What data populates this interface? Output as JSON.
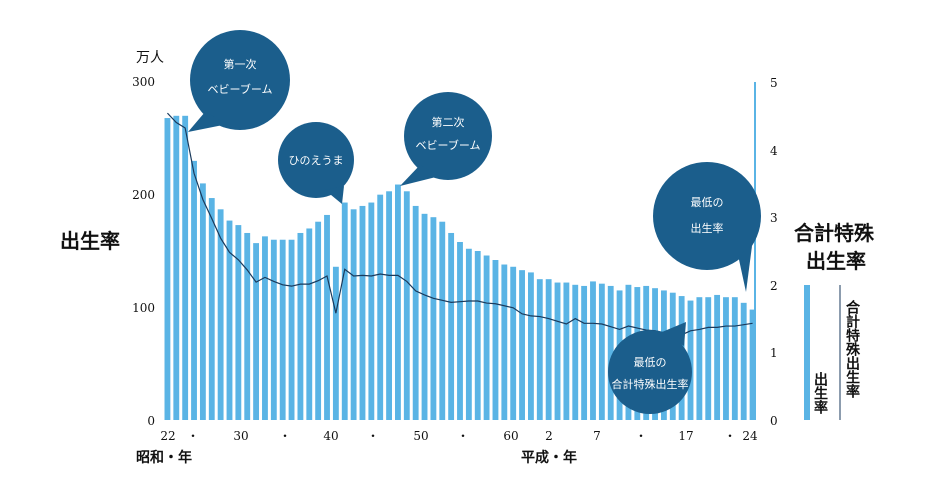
{
  "chart_data": {
    "type": "bar",
    "title": "",
    "left_axis": {
      "label": "出生率",
      "unit": "万人",
      "ylim": [
        0,
        300
      ],
      "ticks": [
        "0",
        "100",
        "200",
        "300"
      ]
    },
    "right_axis": {
      "label_line1": "合計特殊",
      "label_line2": "出生率",
      "ylim": [
        0,
        5
      ],
      "ticks": [
        "0",
        "1",
        "2",
        "3",
        "4",
        "5"
      ]
    },
    "x_axis": {
      "tick_labels": [
        "22",
        "・",
        "30",
        "・",
        "40",
        "・",
        "50",
        "・",
        "60",
        "2",
        "7",
        "・",
        "17",
        "・",
        "24"
      ],
      "era_showa": "昭和・年",
      "era_heisei": "平成・年"
    },
    "series": [
      {
        "name": "出生率",
        "kind": "bar",
        "color": "#5ab4e5",
        "values": [
          268,
          270,
          270,
          230,
          210,
          197,
          187,
          177,
          173,
          166,
          157,
          163,
          160,
          160,
          160,
          166,
          170,
          176,
          182,
          136,
          193,
          187,
          190,
          193,
          200,
          203,
          209,
          203,
          190,
          183,
          180,
          176,
          166,
          158,
          152,
          150,
          146,
          142,
          138,
          136,
          133,
          131,
          125,
          125,
          122,
          122,
          120,
          119,
          123,
          121,
          119,
          115,
          120,
          118,
          119,
          117,
          115,
          113,
          110,
          106,
          109,
          109,
          111,
          109,
          109,
          104,
          98
        ]
      },
      {
        "name": "合計特殊出生率",
        "kind": "line",
        "color": "#1a3a5c",
        "values": [
          4.54,
          4.4,
          4.32,
          3.65,
          3.26,
          2.98,
          2.69,
          2.48,
          2.37,
          2.22,
          2.04,
          2.11,
          2.05,
          2.0,
          1.98,
          2.01,
          2.01,
          2.06,
          2.13,
          1.58,
          2.23,
          2.13,
          2.14,
          2.13,
          2.16,
          2.14,
          2.14,
          2.05,
          1.91,
          1.85,
          1.8,
          1.77,
          1.74,
          1.75,
          1.76,
          1.76,
          1.73,
          1.72,
          1.69,
          1.66,
          1.57,
          1.54,
          1.53,
          1.5,
          1.46,
          1.42,
          1.5,
          1.43,
          1.43,
          1.42,
          1.38,
          1.34,
          1.39,
          1.36,
          1.33,
          1.32,
          1.29,
          1.29,
          1.26,
          1.32,
          1.34,
          1.37,
          1.37,
          1.39,
          1.39,
          1.41,
          1.43
        ]
      }
    ],
    "legend": {
      "bar_label": "出生率",
      "line_label": "合計特殊出生率"
    },
    "annotations": [
      {
        "id": "first-boom",
        "lines": [
          "第一次",
          "ベビーブーム"
        ]
      },
      {
        "id": "hinoeuma",
        "lines": [
          "ひのえうま"
        ]
      },
      {
        "id": "second-boom",
        "lines": [
          "第二次",
          "ベビーブーム"
        ]
      },
      {
        "id": "lowest-births",
        "lines": [
          "最低の",
          "出生率"
        ]
      },
      {
        "id": "lowest-tfr",
        "lines": [
          "最低の",
          "合計特殊出生率"
        ]
      }
    ]
  }
}
